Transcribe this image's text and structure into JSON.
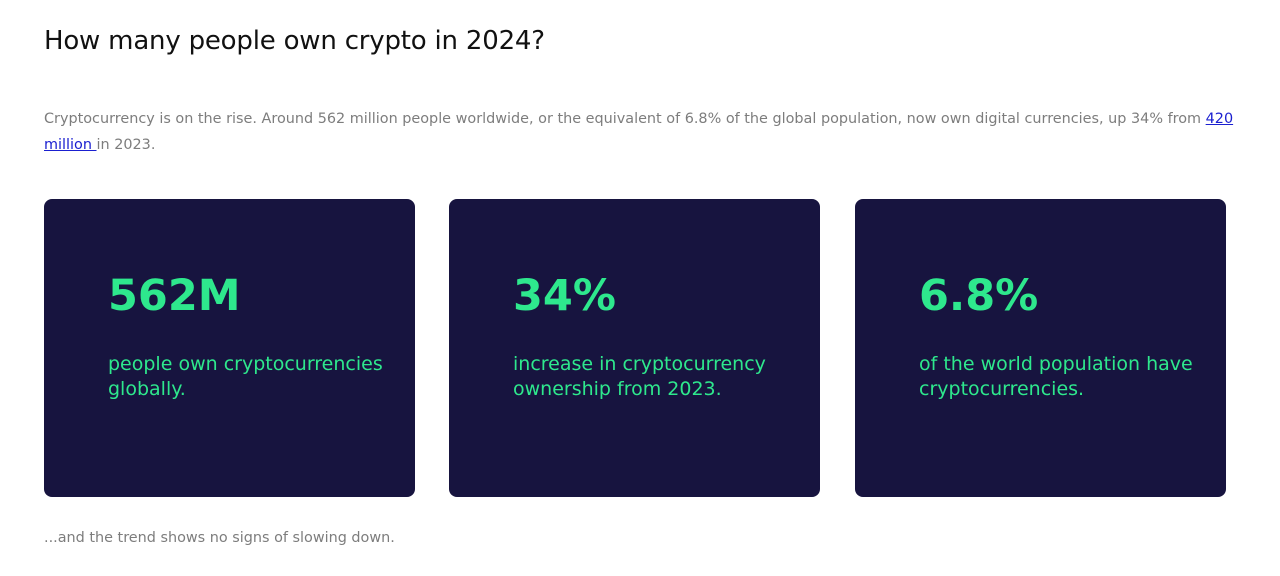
{
  "page": {
    "title": "How many people own crypto in 2024?"
  },
  "intro": {
    "text_before_link": "Cryptocurrency is on the rise. Around 562 million people worldwide, or the equivalent of 6.8% of the global population, now own digital currencies, up 34% from ",
    "link_text": "420 million ",
    "text_after_link": "in 2023."
  },
  "stats": [
    {
      "value": "562M",
      "description": "people own cryptocurrencies globally."
    },
    {
      "value": "34%",
      "description": "increase in cryptocurrency ownership from 2023."
    },
    {
      "value": "6.8%",
      "description": "of the world population have cryptocurrencies."
    }
  ],
  "footer": {
    "note": "...and the trend shows no signs of slowing down."
  },
  "colors": {
    "card_background": "#17143f",
    "accent_green": "#2ee88d",
    "link_blue": "#1a1fd0",
    "body_text_gray": "#7d7d7d"
  }
}
